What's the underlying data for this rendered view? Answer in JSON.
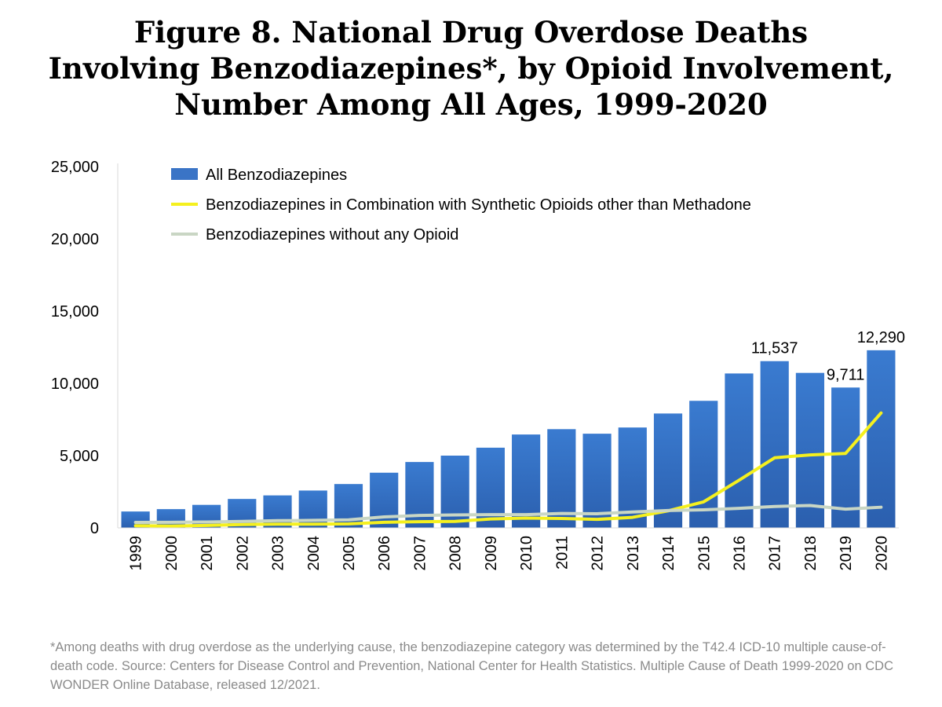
{
  "title": {
    "line1": "Figure 8. National Drug Overdose Deaths",
    "line2": "Involving Benzodiazepines*, by Opioid Involvement,",
    "line3": "Number Among All Ages, 1999-2020"
  },
  "footnote": "*Among deaths with drug overdose as the underlying cause, the benzodiazepine category was determined by the T42.4 ICD-10 multiple cause-of-death code. Source: Centers for Disease Control and Prevention, National Center for Health Statistics. Multiple Cause of Death 1999-2020 on CDC WONDER Online Database, released 12/2021.",
  "colors": {
    "bar": "#3a74c6",
    "bar_dark": "#2a5ba5",
    "synthetic_line": "#f5f01e",
    "no_opioid_line": "#c9d6c4"
  },
  "chart_data": {
    "type": "bar",
    "categories": [
      "1999",
      "2000",
      "2001",
      "2002",
      "2003",
      "2004",
      "2005",
      "2006",
      "2007",
      "2008",
      "2009",
      "2010",
      "2011",
      "2012",
      "2013",
      "2014",
      "2015",
      "2016",
      "2017",
      "2018",
      "2019",
      "2020"
    ],
    "ylim": [
      0,
      25000
    ],
    "yticks": [
      0,
      5000,
      10000,
      15000,
      20000,
      25000
    ],
    "ytick_labels": [
      "0",
      "5,000",
      "10,000",
      "15,000",
      "20,000",
      "25,000"
    ],
    "grid": false,
    "legend_position": "top-left",
    "series": [
      {
        "name": "All Benzodiazepines",
        "kind": "bar",
        "values": [
          1135,
          1298,
          1594,
          2003,
          2248,
          2585,
          3034,
          3818,
          4558,
          5000,
          5549,
          6461,
          6831,
          6516,
          6946,
          7914,
          8791,
          10684,
          11537,
          10724,
          9711,
          12290
        ]
      },
      {
        "name": "Benzodiazepines in Combination with Synthetic Opioids other than Methadone",
        "kind": "line",
        "values": [
          150,
          130,
          170,
          230,
          260,
          260,
          280,
          390,
          430,
          450,
          620,
          680,
          650,
          590,
          730,
          1180,
          1800,
          3300,
          4850,
          5050,
          5150,
          7950
        ]
      },
      {
        "name": "Benzodiazepines without any Opioid",
        "kind": "line",
        "values": [
          380,
          390,
          410,
          450,
          500,
          520,
          560,
          760,
          860,
          900,
          920,
          920,
          1000,
          980,
          1100,
          1200,
          1250,
          1350,
          1480,
          1550,
          1300,
          1430
        ]
      }
    ],
    "data_labels": [
      {
        "category": "2017",
        "text": "11,537"
      },
      {
        "category": "2019",
        "text": "9,711"
      },
      {
        "category": "2020",
        "text": "12,290"
      }
    ]
  }
}
